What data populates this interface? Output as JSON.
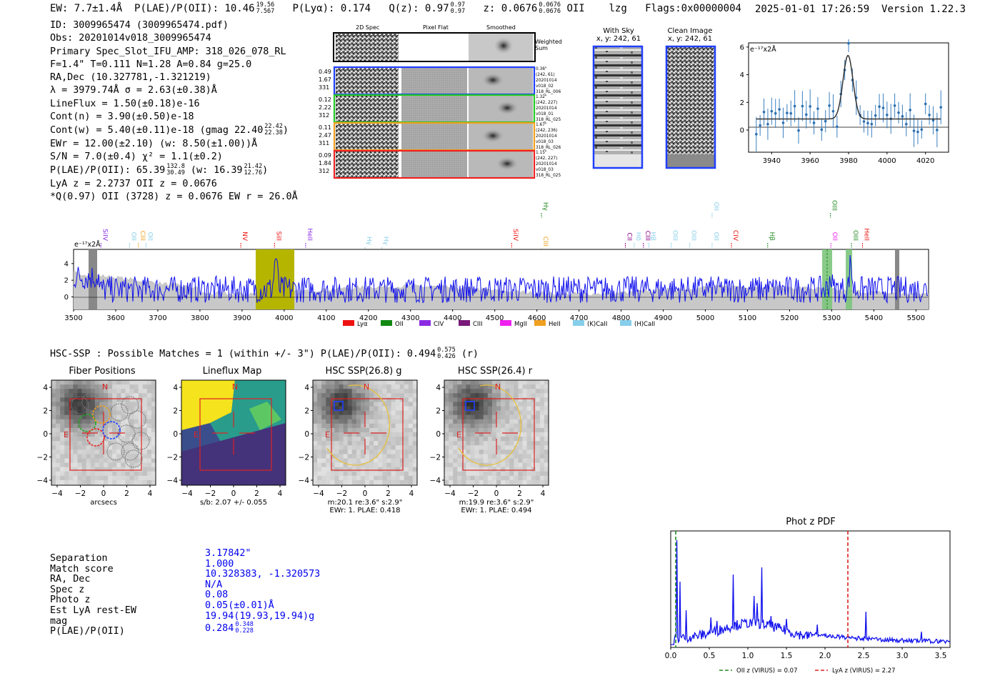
{
  "header": {
    "ew": "EW: 7.7±1.4Å",
    "plae_label": "P(LAE)/P(OII): 10.46",
    "plae_hi": "19.56",
    "plae_lo": "7.567",
    "plya": "P(Lyα): 0.174",
    "q": "Q(z): 0.97",
    "q_hi": "0.97",
    "q_lo": "0.97",
    "z": "z: 0.0676",
    "z_hi": "0.0676",
    "z_lo": "0.0676",
    "z_line": "OII",
    "lzg": "lzg",
    "flags": "Flags:0x00000004",
    "timestamp": "2025-01-01 17:26:59",
    "version": "Version 1.22.3"
  },
  "info": {
    "id": "ID: 3009965474 (3009965474.pdf)",
    "obs": "Obs: 20201014v018_3009965474",
    "primary": "Primary Spec_Slot_IFU_AMP: 318_026_078_RL",
    "fwhm": "F=1.4\"  T=0.111  N=1.28  A=0.84  g=25.0",
    "radec": "RA,Dec (10.327781,-1.321219)",
    "lambda": "λ = 3979.74Å   σ = 2.63(±0.38)Å",
    "lineflux": "LineFlux = 1.50(±0.18)e-16",
    "contn": "Cont(n) = 3.90(±0.50)e-18",
    "contw": "Cont(w) = 5.40(±0.11)e-18 (gmag 22.40",
    "contw_hi": "22.42",
    "contw_lo": "22.38",
    "ewr": "EWr = 12.00(±2.10) (w: 8.50(±1.00))Å",
    "sn": "S/N = 7.0(±0.4)  χ² = 1.1(±0.2)",
    "plae": "P(LAE)/P(OII): 65.39",
    "plae_hi": "132.8",
    "plae_lo": "30.49",
    "plae_w": "(w: 16.39",
    "plae_w_hi": "21.42",
    "plae_w_lo": "12.76",
    "lya": "LyA z = 2.2737   OII z = 0.0676",
    "q_line": "*Q(0.97) OII (3728) z = 0.0676  EW r = 26.0Å"
  },
  "cutouts": {
    "col_titles": [
      "2D Spec",
      "Pixel Flat",
      "Smoothed"
    ],
    "weighted_sum": "Weighted Sum",
    "rows": [
      {
        "vals": [
          "0.49",
          "1.67",
          "331"
        ],
        "meta": [
          "0.36\"",
          "(242, 61)",
          "20201014",
          "v018_02",
          "318_RL_006"
        ],
        "color": "#1f3fff"
      },
      {
        "vals": [
          "0.12",
          "2.22",
          "312"
        ],
        "meta": [
          "1.32\"",
          "(242, 227)",
          "20201014",
          "v018_01",
          "318_RL_025"
        ],
        "color": "#22cc22"
      },
      {
        "vals": [
          "0.11",
          "2.47",
          "311"
        ],
        "meta": [
          "1.67\"",
          "(242, 236)",
          "20201014",
          "v018_03",
          "318_RL_026"
        ],
        "color": "#f0a020"
      },
      {
        "vals": [
          "0.09",
          "1.84",
          "312"
        ],
        "meta": [
          "1.15\"",
          "(242, 227)",
          "20201014",
          "v018_03",
          "318_RL_025"
        ],
        "color": "#ee2222"
      }
    ]
  },
  "sky": {
    "with_sky": "With Sky",
    "with_sky_xy": "x, y: 242, 61",
    "clean": "Clean Image",
    "clean_xy": "x, y: 242, 61"
  },
  "zoom": {
    "scale_label": "e⁻¹⁷x2Å",
    "x_ticks": [
      "3940",
      "3960",
      "3980",
      "4000",
      "4020"
    ],
    "y_ticks": [
      "6",
      "4",
      "2",
      "0"
    ]
  },
  "spectrum": {
    "scale_label": "e⁻¹⁷x2Å",
    "x_ticks": [
      "3500",
      "3600",
      "3700",
      "3800",
      "3900",
      "4000",
      "4100",
      "4200",
      "4300",
      "4400",
      "4500",
      "4600",
      "4700",
      "4800",
      "4900",
      "5000",
      "5100",
      "5200",
      "5300",
      "5400",
      "5500"
    ],
    "y_ticks": [
      "4",
      "2",
      "0"
    ],
    "lines": [
      {
        "label": "SiIV",
        "color": "#8a2be2"
      },
      {
        "label": "OII",
        "color": "#87ceeb"
      },
      {
        "label": "CIII",
        "color": "#f0a020"
      },
      {
        "label": "OII",
        "color": "#87ceeb"
      },
      {
        "label": "NV",
        "color": "#ee1111"
      },
      {
        "label": "SiII",
        "color": "#ee1111"
      },
      {
        "label": "HeII",
        "color": "#8a2be2"
      },
      {
        "label": "Hγ",
        "color": "#87ceeb"
      },
      {
        "label": "Hγ",
        "color": "#87ceeb"
      },
      {
        "label": "SiIV",
        "color": "#ee1111"
      },
      {
        "label": "CIII",
        "color": "#f0a020"
      },
      {
        "label": "Hγ",
        "color": "#228b22"
      },
      {
        "label": "CII",
        "color": "#8b008b"
      },
      {
        "label": "Hδ",
        "color": "#87ceeb"
      },
      {
        "label": "CIII",
        "color": "#8b008b"
      },
      {
        "label": "Hβ",
        "color": "#87ceeb"
      },
      {
        "label": "OIII",
        "color": "#87ceeb"
      },
      {
        "label": "OIII",
        "color": "#87ceeb"
      },
      {
        "label": "OII",
        "color": "#87ceeb"
      },
      {
        "label": "CIV",
        "color": "#ee1111"
      },
      {
        "label": "OII",
        "color": "#87ceeb"
      },
      {
        "label": "Hβ",
        "color": "#228b22"
      },
      {
        "label": "OII",
        "color": "#ee22ee"
      },
      {
        "label": "OIII",
        "color": "#228b22"
      },
      {
        "label": "OIII",
        "color": "#228b22"
      },
      {
        "label": "HeII",
        "color": "#ee1111"
      }
    ],
    "legend": [
      {
        "label": "Lyα",
        "color": "#ee1111"
      },
      {
        "label": "OII",
        "color": "#118811"
      },
      {
        "label": "CIV",
        "color": "#8a2be2"
      },
      {
        "label": "CIII",
        "color": "#7a1a7a"
      },
      {
        "label": "MgII",
        "color": "#ee22ee"
      },
      {
        "label": "HeII",
        "color": "#f0a020"
      },
      {
        "label": "(K)CaII",
        "color": "#87ceeb"
      },
      {
        "label": "(H)CaII",
        "color": "#87ceeb"
      }
    ]
  },
  "hsc": {
    "summary": "HSC-SSP : Possible Matches = 1 (within +/- 3\")  P(LAE)/P(OII): 0.494",
    "summary_hi": "0.575",
    "summary_lo": "0.426",
    "summary_band": "(r)",
    "panels": [
      {
        "title": "Fiber Positions",
        "caption": [
          "arcsecs"
        ]
      },
      {
        "title": "Lineflux Map",
        "caption": [
          "s/b: 2.07 +/- 0.055"
        ]
      },
      {
        "title": "HSC SSP(26.8) g",
        "caption": [
          "m:20.1  re:3.6\"  s:2.9\"",
          "EWr: 1. PLAE: 0.418"
        ]
      },
      {
        "title": "HSC SSP(26.4) r",
        "caption": [
          "m:19.9  re:3.6\"  s:2.9\"",
          "EWr: 1. PLAE: 0.494"
        ]
      }
    ],
    "x_ticks": [
      "−4",
      "−2",
      "0",
      "2",
      "4"
    ],
    "y_ticks": [
      "4",
      "2",
      "0",
      "−2",
      "−4"
    ],
    "north": "N",
    "east": "E"
  },
  "match": {
    "labels": [
      "Separation",
      "Match score",
      "RA, Dec",
      "Spec z",
      "Photo z",
      "Est LyA rest-EW",
      "mag",
      "P(LAE)/P(OII)"
    ],
    "values": [
      "3.17842\"",
      "1.000",
      "10.328383, -1.320573",
      "N/A",
      "0.08",
      "0.05(±0.01)Å",
      "19.94(19.93,19.94)g",
      "0.284"
    ],
    "plae_hi": "0.348",
    "plae_lo": "0.228"
  },
  "photz": {
    "title": "Phot z PDF",
    "x_ticks": [
      "0.0",
      "0.5",
      "1.0",
      "1.5",
      "2.0",
      "2.5",
      "3.0",
      "3.5"
    ],
    "legend_oii": "OII z (VIRUS) = 0.07",
    "legend_lya": "LyA z (VIRUS) = 2.27",
    "oii_color": "#228b22",
    "lya_color": "#dd2222",
    "line_color": "#1010ee"
  }
}
